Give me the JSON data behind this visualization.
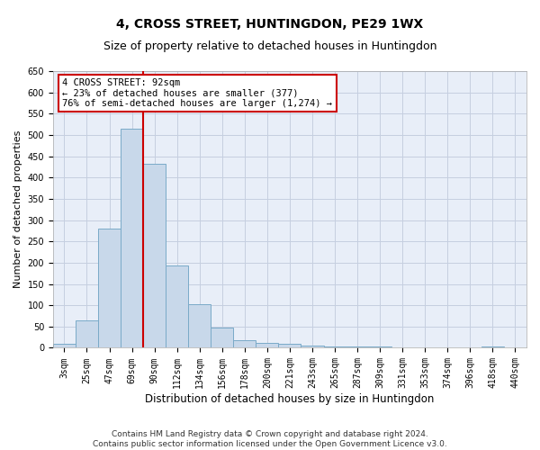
{
  "title": "4, CROSS STREET, HUNTINGDON, PE29 1WX",
  "subtitle": "Size of property relative to detached houses in Huntingdon",
  "xlabel": "Distribution of detached houses by size in Huntingdon",
  "ylabel": "Number of detached properties",
  "categories": [
    "3sqm",
    "25sqm",
    "47sqm",
    "69sqm",
    "90sqm",
    "112sqm",
    "134sqm",
    "156sqm",
    "178sqm",
    "200sqm",
    "221sqm",
    "243sqm",
    "265sqm",
    "287sqm",
    "309sqm",
    "331sqm",
    "353sqm",
    "374sqm",
    "396sqm",
    "418sqm",
    "440sqm"
  ],
  "values": [
    10,
    65,
    280,
    515,
    433,
    193,
    102,
    47,
    18,
    12,
    10,
    5,
    4,
    4,
    4,
    1,
    1,
    1,
    0,
    4,
    1
  ],
  "bar_color": "#c8d8ea",
  "bar_edge_color": "#7aaac8",
  "vline_color": "#cc0000",
  "annotation_text": "4 CROSS STREET: 92sqm\n← 23% of detached houses are smaller (377)\n76% of semi-detached houses are larger (1,274) →",
  "annotation_box_color": "#cc0000",
  "ylim": [
    0,
    650
  ],
  "yticks": [
    0,
    50,
    100,
    150,
    200,
    250,
    300,
    350,
    400,
    450,
    500,
    550,
    600,
    650
  ],
  "grid_color": "#c5cfe0",
  "background_color": "#e8eef8",
  "footnote": "Contains HM Land Registry data © Crown copyright and database right 2024.\nContains public sector information licensed under the Open Government Licence v3.0.",
  "title_fontsize": 10,
  "subtitle_fontsize": 9,
  "xlabel_fontsize": 8.5,
  "ylabel_fontsize": 8,
  "tick_fontsize": 7,
  "annotation_fontsize": 7.5,
  "footnote_fontsize": 6.5
}
